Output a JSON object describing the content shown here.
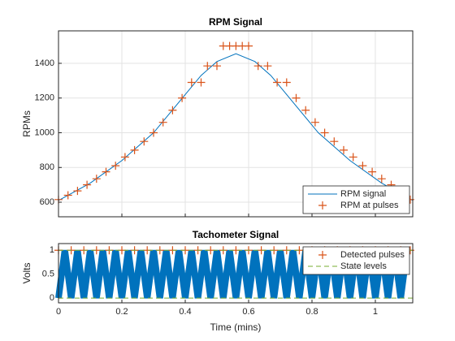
{
  "chart_data": [
    {
      "type": "line",
      "title": "RPM Signal",
      "ylabel": "RPMs",
      "xlim": [
        0,
        1.118
      ],
      "xticks": [
        0,
        0.2,
        0.4,
        0.6,
        0.8,
        1
      ],
      "show_xticklabels": false,
      "ylim": [
        516,
        1587
      ],
      "yticks": [
        600,
        800,
        1000,
        1200,
        1400
      ],
      "grid": true,
      "legend": "southeast",
      "series": [
        {
          "name": "RPM signal",
          "color": "#0072bd",
          "mode": "line",
          "x": [
            0,
            0.1,
            0.2,
            0.3,
            0.4,
            0.45,
            0.5,
            0.56,
            0.62,
            0.67,
            0.72,
            0.82,
            0.92,
            1.02,
            1.118
          ],
          "values": [
            610,
            710,
            840,
            1000,
            1220,
            1330,
            1410,
            1455,
            1410,
            1330,
            1220,
            1000,
            840,
            710,
            610
          ]
        },
        {
          "name": "RPM at pulses",
          "color": "#d95319",
          "mode": "markers",
          "x": [
            0,
            0.03,
            0.06,
            0.09,
            0.12,
            0.15,
            0.18,
            0.21,
            0.24,
            0.27,
            0.3,
            0.33,
            0.36,
            0.39,
            0.42,
            0.45,
            0.47,
            0.5,
            0.52,
            0.54,
            0.56,
            0.58,
            0.6,
            0.63,
            0.66,
            0.69,
            0.72,
            0.75,
            0.78,
            0.81,
            0.84,
            0.87,
            0.9,
            0.93,
            0.96,
            0.99,
            1.02,
            1.05,
            1.08,
            1.11
          ],
          "values": [
            615,
            640,
            665,
            700,
            735,
            775,
            810,
            860,
            900,
            950,
            1000,
            1060,
            1130,
            1200,
            1290,
            1290,
            1385,
            1385,
            1500,
            1500,
            1500,
            1500,
            1500,
            1385,
            1385,
            1290,
            1290,
            1200,
            1130,
            1060,
            1000,
            950,
            900,
            860,
            810,
            775,
            735,
            700,
            665,
            615
          ]
        }
      ]
    },
    {
      "type": "line",
      "title": "Tachometer Signal",
      "ylabel": "Volts",
      "xlabel": "Time (mins)",
      "xlim": [
        0,
        1.118
      ],
      "xticks": [
        0,
        0.2,
        0.4,
        0.6,
        0.8,
        1
      ],
      "show_xticklabels": true,
      "ylim": [
        -0.1,
        1.14
      ],
      "yticks": [
        0,
        0.5,
        1
      ],
      "grid": false,
      "legend": "northeast",
      "series": [
        {
          "color": "#0072bd",
          "mode": "line",
          "x": [
            0,
            0.02,
            0.04,
            0.06,
            0.08,
            0.1,
            0.12,
            0.14,
            0.16,
            0.18,
            0.2,
            0.22,
            0.24,
            0.26,
            0.28,
            0.3,
            0.32,
            0.34,
            0.36,
            0.38,
            0.4,
            0.42,
            0.44,
            0.46,
            0.48,
            0.5,
            0.52,
            0.54,
            0.56,
            0.58,
            0.6,
            0.62,
            0.64,
            0.66,
            0.68,
            0.7,
            0.72,
            0.74,
            0.76,
            0.78,
            0.8,
            0.82,
            0.84,
            0.86,
            0.88,
            0.9,
            0.92,
            0.94,
            0.96,
            0.98,
            1,
            1.02,
            1.04,
            1.06,
            1.08,
            1.1
          ],
          "values": [
            0,
            1,
            0,
            1,
            0,
            1,
            0,
            1,
            0,
            1,
            0,
            1,
            0,
            1,
            0,
            1,
            0,
            1,
            0,
            1,
            0,
            1,
            0,
            1,
            0,
            1,
            0,
            1,
            0,
            1,
            0,
            1,
            0,
            1,
            0,
            1,
            0,
            1,
            0,
            1,
            0,
            1,
            0,
            1,
            0,
            1,
            0,
            1,
            0,
            1,
            0,
            1,
            0,
            1,
            0,
            1
          ]
        },
        {
          "name": "Detected pulses",
          "color": "#d95319",
          "mode": "markers",
          "x": [
            0,
            0.04,
            0.08,
            0.12,
            0.16,
            0.2,
            0.24,
            0.28,
            0.32,
            0.36,
            0.4,
            0.44,
            0.48,
            0.52,
            0.56,
            0.6,
            0.64,
            0.68,
            0.72,
            0.76,
            0.8,
            0.84,
            0.88,
            0.92,
            0.96,
            1,
            1.04,
            1.08,
            1.11
          ],
          "values": [
            1,
            1,
            1,
            1,
            1,
            1,
            1,
            1,
            1,
            1,
            1,
            1,
            1,
            1,
            1,
            1,
            1,
            1,
            1,
            1,
            1,
            1,
            1,
            1,
            1,
            1,
            1,
            1,
            1
          ]
        },
        {
          "name": "State levels",
          "color": "#77ac30",
          "mode": "levels",
          "levels": [
            0,
            1
          ]
        }
      ]
    }
  ]
}
